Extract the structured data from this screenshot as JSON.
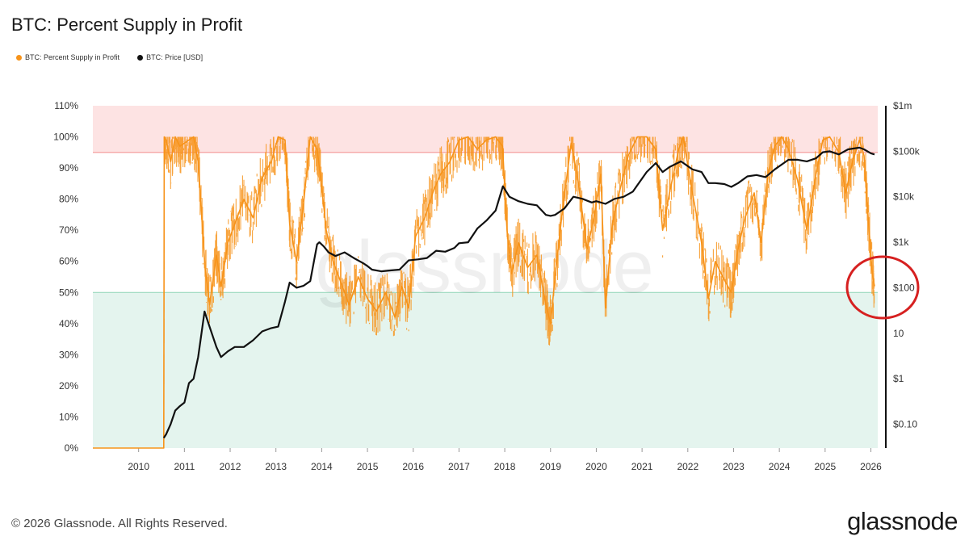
{
  "header": {
    "title": "BTC: Percent Supply in Profit"
  },
  "legend": [
    {
      "label": "BTC: Percent Supply in Profit",
      "color": "#f7931a"
    },
    {
      "label": "BTC: Price [USD]",
      "color": "#111111"
    }
  ],
  "footer": {
    "copyright": "© 2026 Glassnode. All Rights Reserved.",
    "brand": "glassnode"
  },
  "chart_data": {
    "type": "line",
    "title": "BTC: Percent Supply in Profit",
    "x_range": [
      2009.0,
      2026.15
    ],
    "x_ticks": [
      "2010",
      "2011",
      "2012",
      "2013",
      "2014",
      "2015",
      "2016",
      "2017",
      "2018",
      "2019",
      "2020",
      "2021",
      "2022",
      "2023",
      "2024",
      "2025",
      "2026"
    ],
    "y_left": {
      "label": "",
      "range": [
        0,
        110
      ],
      "ticks": [
        "0%",
        "10%",
        "20%",
        "30%",
        "40%",
        "50%",
        "60%",
        "70%",
        "80%",
        "90%",
        "100%",
        "110%"
      ]
    },
    "y_right": {
      "label": "",
      "scale": "log",
      "range": [
        0.03,
        1000000
      ],
      "ticks": [
        {
          "value": 0.1,
          "label": "$0.10"
        },
        {
          "value": 1,
          "label": "$1"
        },
        {
          "value": 10,
          "label": "10"
        },
        {
          "value": 100,
          "label": "$100"
        },
        {
          "value": 1000,
          "label": "$1k"
        },
        {
          "value": 10000,
          "label": "$10k"
        },
        {
          "value": 100000,
          "label": "$100k"
        },
        {
          "value": 1000000,
          "label": "$1m"
        }
      ]
    },
    "bands": [
      {
        "from": 95,
        "to": 110,
        "color": "#fde3e3",
        "line": "#f28b8b"
      },
      {
        "from": 0,
        "to": 50,
        "color": "#e4f4ee",
        "line": "#8fd3b6"
      }
    ],
    "series": [
      {
        "name": "BTC: Percent Supply in Profit",
        "axis": "left",
        "color": "#f7931a",
        "x": [
          2009.0,
          2010.55,
          2010.56,
          2010.6,
          2010.7,
          2010.8,
          2010.9,
          2011.0,
          2011.1,
          2011.2,
          2011.3,
          2011.45,
          2011.55,
          2011.7,
          2011.8,
          2011.95,
          2012.1,
          2012.3,
          2012.5,
          2012.7,
          2012.9,
          2013.05,
          2013.2,
          2013.3,
          2013.45,
          2013.6,
          2013.75,
          2013.9,
          2014.0,
          2014.1,
          2014.25,
          2014.45,
          2014.6,
          2014.8,
          2015.0,
          2015.2,
          2015.4,
          2015.6,
          2015.75,
          2015.9,
          2016.05,
          2016.25,
          2016.45,
          2016.6,
          2016.8,
          2017.0,
          2017.2,
          2017.4,
          2017.6,
          2017.8,
          2017.95,
          2018.05,
          2018.15,
          2018.3,
          2018.5,
          2018.7,
          2018.9,
          2019.0,
          2019.1,
          2019.25,
          2019.45,
          2019.6,
          2019.8,
          2019.95,
          2020.1,
          2020.2,
          2020.35,
          2020.5,
          2020.7,
          2020.9,
          2021.1,
          2021.3,
          2021.45,
          2021.6,
          2021.8,
          2021.9,
          2022.1,
          2022.3,
          2022.45,
          2022.6,
          2022.8,
          2022.95,
          2023.1,
          2023.25,
          2023.45,
          2023.6,
          2023.75,
          2023.9,
          2024.05,
          2024.2,
          2024.4,
          2024.6,
          2024.8,
          2024.95,
          2025.1,
          2025.3,
          2025.45,
          2025.6,
          2025.75,
          2025.85,
          2025.95,
          2026.03,
          2026.08
        ],
        "y": [
          0,
          0,
          100,
          99,
          92,
          100,
          97,
          98,
          99,
          100,
          92,
          58,
          46,
          62,
          52,
          66,
          72,
          80,
          74,
          87,
          92,
          100,
          99,
          72,
          60,
          78,
          100,
          96,
          84,
          70,
          60,
          52,
          46,
          55,
          48,
          44,
          50,
          42,
          52,
          45,
          68,
          74,
          83,
          88,
          92,
          99,
          100,
          96,
          99,
          100,
          97,
          70,
          56,
          66,
          58,
          62,
          46,
          40,
          55,
          75,
          98,
          86,
          64,
          74,
          88,
          45,
          72,
          82,
          94,
          100,
          100,
          96,
          70,
          82,
          96,
          100,
          82,
          66,
          48,
          60,
          54,
          50,
          64,
          74,
          82,
          66,
          88,
          97,
          100,
          96,
          86,
          70,
          88,
          99,
          100,
          95,
          82,
          92,
          99,
          94,
          72,
          56,
          52
        ]
      },
      {
        "name": "BTC: Price [USD]",
        "axis": "right",
        "color": "#111111",
        "x": [
          2010.55,
          2010.6,
          2010.7,
          2010.8,
          2010.9,
          2011.0,
          2011.1,
          2011.2,
          2011.3,
          2011.44,
          2011.55,
          2011.7,
          2011.8,
          2011.95,
          2012.1,
          2012.3,
          2012.5,
          2012.7,
          2012.9,
          2013.05,
          2013.2,
          2013.3,
          2013.45,
          2013.6,
          2013.75,
          2013.9,
          2013.95,
          2014.05,
          2014.15,
          2014.3,
          2014.5,
          2014.7,
          2014.9,
          2015.0,
          2015.1,
          2015.3,
          2015.5,
          2015.7,
          2015.9,
          2016.1,
          2016.3,
          2016.5,
          2016.7,
          2016.9,
          2017.0,
          2017.2,
          2017.4,
          2017.6,
          2017.8,
          2017.96,
          2018.1,
          2018.3,
          2018.5,
          2018.7,
          2018.9,
          2019.0,
          2019.1,
          2019.3,
          2019.5,
          2019.7,
          2019.9,
          2020.0,
          2020.2,
          2020.4,
          2020.6,
          2020.8,
          2020.9,
          2021.1,
          2021.3,
          2021.45,
          2021.6,
          2021.85,
          2022.1,
          2022.3,
          2022.45,
          2022.6,
          2022.8,
          2022.95,
          2023.1,
          2023.3,
          2023.5,
          2023.7,
          2023.9,
          2024.2,
          2024.4,
          2024.6,
          2024.8,
          2024.95,
          2025.1,
          2025.3,
          2025.5,
          2025.75,
          2025.85,
          2026.0,
          2026.08
        ],
        "y": [
          0.05,
          0.06,
          0.1,
          0.2,
          0.25,
          0.3,
          0.8,
          1,
          3,
          30,
          14,
          5,
          3,
          4,
          5,
          5,
          7,
          11,
          13,
          14,
          50,
          130,
          100,
          110,
          140,
          900,
          1000,
          800,
          600,
          500,
          600,
          450,
          350,
          300,
          250,
          230,
          240,
          250,
          400,
          420,
          450,
          650,
          620,
          750,
          950,
          1000,
          2000,
          3000,
          5000,
          17000,
          10000,
          8000,
          7000,
          6500,
          4000,
          3800,
          4000,
          5500,
          10000,
          9000,
          7500,
          8000,
          7000,
          9000,
          10000,
          13000,
          18000,
          35000,
          55000,
          35000,
          45000,
          60000,
          40000,
          35000,
          20000,
          20000,
          19000,
          16500,
          20000,
          28000,
          30000,
          27000,
          40000,
          65000,
          65000,
          60000,
          70000,
          95000,
          100000,
          85000,
          110000,
          120000,
          110000,
          90000,
          85000
        ]
      }
    ]
  }
}
